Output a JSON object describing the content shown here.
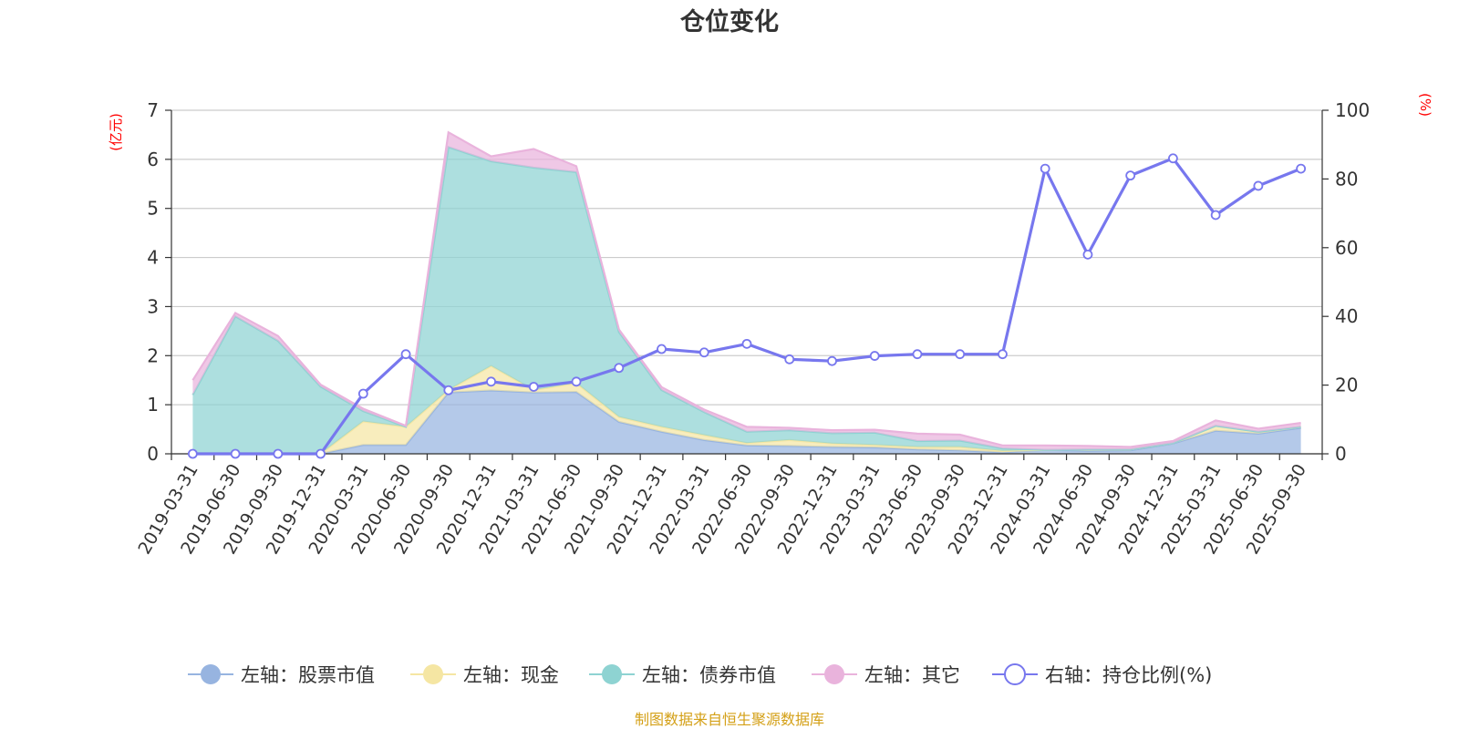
{
  "chart_data": {
    "type": "area",
    "title": "仓位变化",
    "left_unit": "(亿元)",
    "right_unit": "(%)",
    "left_ylim": [
      0,
      7
    ],
    "left_ticks": [
      "0",
      "1",
      "2",
      "3",
      "4",
      "5",
      "6",
      "7"
    ],
    "right_ylim": [
      0,
      100
    ],
    "right_ticks": [
      "0",
      "20",
      "40",
      "60",
      "80",
      "100"
    ],
    "categories": [
      "2019-03-31",
      "2019-06-30",
      "2019-09-30",
      "2019-12-31",
      "2020-03-31",
      "2020-06-30",
      "2020-09-30",
      "2020-12-31",
      "2021-03-31",
      "2021-06-30",
      "2021-09-30",
      "2021-12-31",
      "2022-03-31",
      "2022-06-30",
      "2022-09-30",
      "2022-12-31",
      "2023-03-31",
      "2023-06-30",
      "2023-09-30",
      "2023-12-31",
      "2024-03-31",
      "2024-06-30",
      "2024-09-30",
      "2024-12-31",
      "2025-03-31",
      "2025-06-30",
      "2025-09-30"
    ],
    "stacked_series": [
      {
        "name": "左轴：股票市值",
        "color": "#97b4e0",
        "values": [
          0,
          0,
          0,
          0,
          0.18,
          0.18,
          1.25,
          1.29,
          1.25,
          1.26,
          0.65,
          0.45,
          0.28,
          0.17,
          0.16,
          0.14,
          0.13,
          0.09,
          0.07,
          0.03,
          0.08,
          0.06,
          0.07,
          0.21,
          0.47,
          0.41,
          0.53
        ]
      },
      {
        "name": "左轴：现金",
        "color": "#f5e6a3",
        "values": [
          0,
          0,
          0,
          0,
          0.48,
          0.37,
          0.05,
          0.5,
          0.05,
          0.18,
          0.1,
          0.1,
          0.1,
          0.05,
          0.12,
          0.07,
          0.05,
          0.05,
          0.07,
          0.03,
          0,
          0.03,
          0.02,
          0.01,
          0.1,
          0.04,
          0.02
        ]
      },
      {
        "name": "左轴：债券市值",
        "color": "#8ed3d2",
        "values": [
          1.2,
          2.8,
          2.3,
          1.37,
          0.21,
          0,
          4.95,
          4.17,
          4.53,
          4.3,
          1.73,
          0.75,
          0.47,
          0.23,
          0.2,
          0.21,
          0.25,
          0.12,
          0.13,
          0.05,
          0,
          0,
          0,
          0,
          0,
          0,
          0
        ]
      },
      {
        "name": "左轴：其它",
        "color": "#e9b3dc",
        "values": [
          0.3,
          0.07,
          0.1,
          0.04,
          0.05,
          0.02,
          0.3,
          0.1,
          0.38,
          0.12,
          0.05,
          0.06,
          0.05,
          0.1,
          0.05,
          0.06,
          0.06,
          0.15,
          0.12,
          0.06,
          0.09,
          0.07,
          0.05,
          0.04,
          0.11,
          0.06,
          0.08
        ]
      }
    ],
    "line_series": {
      "name": "右轴：持仓比例(%)",
      "color": "#7777ee",
      "values": [
        0,
        0,
        0,
        0,
        17.5,
        29,
        18.5,
        21,
        19.5,
        21,
        25,
        30.5,
        29.5,
        32,
        27.5,
        27,
        28.5,
        29,
        29,
        29,
        83,
        58,
        81,
        86,
        69.5,
        78,
        83
      ]
    }
  },
  "footer": {
    "source": "制图数据来自恒生聚源数据库"
  }
}
